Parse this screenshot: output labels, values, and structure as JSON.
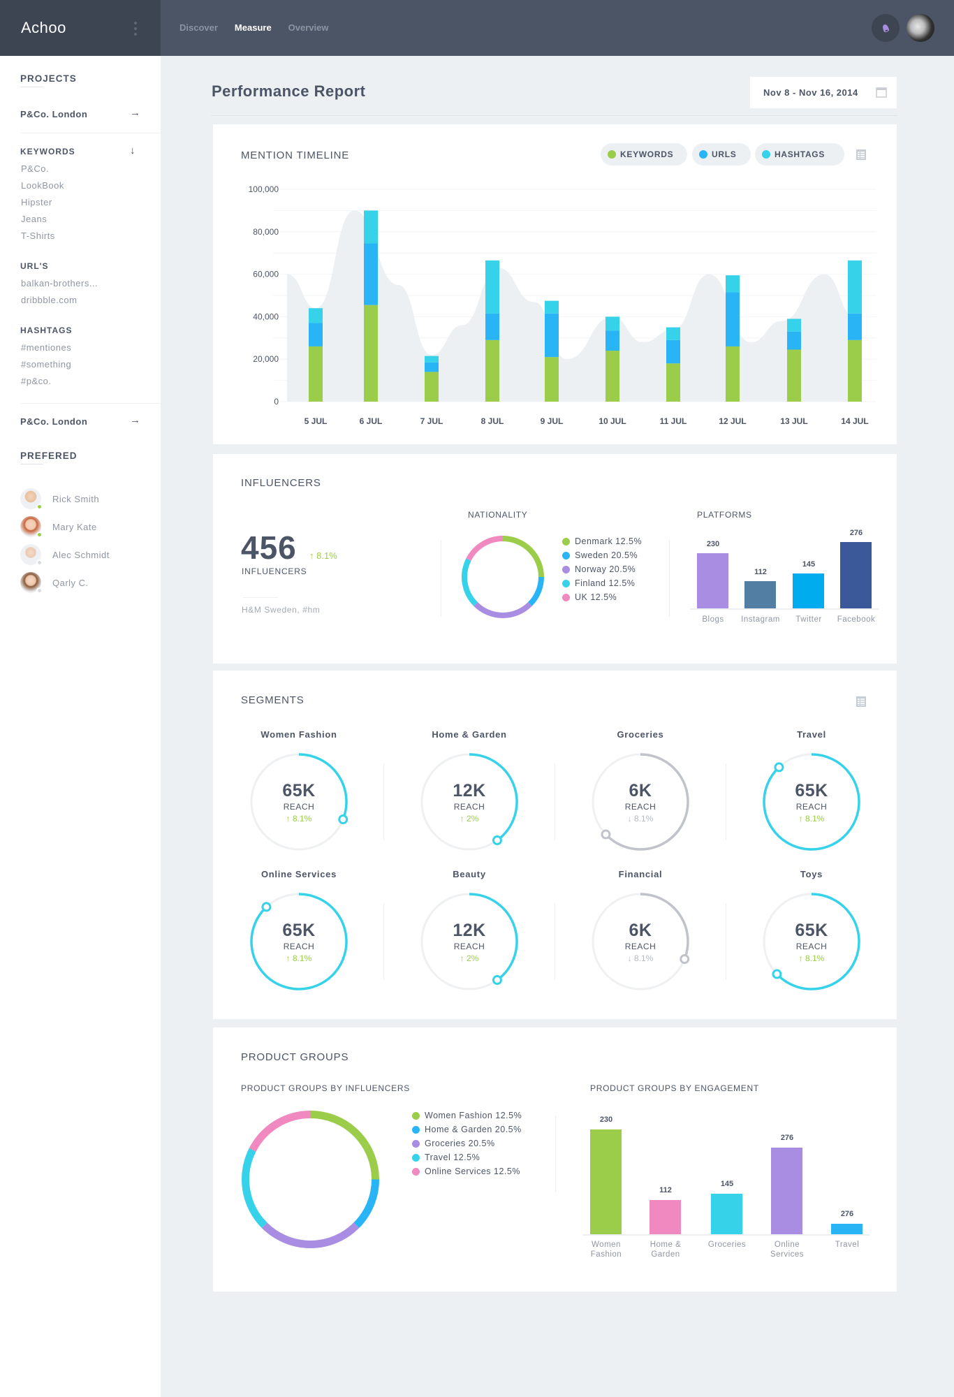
{
  "app": {
    "name": "Achoo",
    "nav": [
      {
        "label": "Discover",
        "active": false
      },
      {
        "label": "Measure",
        "active": true
      },
      {
        "label": "Overview",
        "active": false
      }
    ]
  },
  "sidebar": {
    "projects_heading": "PROJECTS",
    "project_top": "P&Co. London",
    "keywords_heading": "KEYWORDS",
    "keywords": [
      "P&Co.",
      "LookBook",
      "Hipster",
      "Jeans",
      "T-Shirts"
    ],
    "urls_heading": "URL'S",
    "urls": [
      "balkan-brothers...",
      "dribbble.com"
    ],
    "hashtags_heading": "HASHTAGS",
    "hashtags": [
      "#mentiones",
      "#something",
      "#p&co."
    ],
    "project_bottom": "P&Co. London",
    "prefered_heading": "PREFERED",
    "people": [
      {
        "name": "Rick Smith",
        "status": "online"
      },
      {
        "name": "Mary Kate",
        "status": "online"
      },
      {
        "name": "Alec Schmidt",
        "status": "offline"
      },
      {
        "name": "Qarly C.",
        "status": "offline"
      }
    ]
  },
  "header": {
    "title": "Performance Report",
    "date_range": "Nov 8 - Nov 16, 2014"
  },
  "colors": {
    "green": "#9bcd4b",
    "blue": "#29b5f5",
    "cyan": "#36d2ea",
    "purple": "#a88de2",
    "pink": "#ef89c0",
    "gray_ring": "#c0c3ca",
    "steel": "#517ea2",
    "twitter": "#00aced",
    "facebook": "#3b5998"
  },
  "mention_timeline": {
    "title": "MENTION TIMELINE",
    "filters": [
      {
        "label": "KEYWORDS",
        "color": "#9bcd4b"
      },
      {
        "label": "URLS",
        "color": "#29b5f5"
      },
      {
        "label": "HASHTAGS",
        "color": "#36d2ea"
      }
    ]
  },
  "influencers": {
    "title": "INFLUENCERS",
    "count": "456",
    "change": "8.1%",
    "count_label": "INFLUENCERS",
    "source": "H&M Sweden, #hm",
    "nationality_title": "NATIONALITY",
    "platforms_title": "PLATFORMS"
  },
  "segments": {
    "title": "SEGMENTS",
    "reach_label": "REACH",
    "items": [
      {
        "name": "Women Fashion",
        "value": "65K",
        "change": "8.1%",
        "trend": "up",
        "progress": 0.31
      },
      {
        "name": "Home & Garden",
        "value": "12K",
        "change": "2%",
        "trend": "up",
        "progress": 0.4
      },
      {
        "name": "Groceries",
        "value": "6K",
        "change": "8.1%",
        "trend": "down",
        "progress": 0.63
      },
      {
        "name": "Travel",
        "value": "65K",
        "change": "8.1%",
        "trend": "up",
        "progress": 0.88
      },
      {
        "name": "Online Services",
        "value": "65K",
        "change": "8.1%",
        "trend": "up",
        "progress": 0.88
      },
      {
        "name": "Beauty",
        "value": "12K",
        "change": "2%",
        "trend": "up",
        "progress": 0.4
      },
      {
        "name": "Financial",
        "value": "6K",
        "change": "8.1%",
        "trend": "down",
        "progress": 0.31
      },
      {
        "name": "Toys",
        "value": "65K",
        "change": "8.1%",
        "trend": "up",
        "progress": 0.63
      }
    ]
  },
  "product_groups": {
    "title": "PRODUCT GROUPS",
    "by_influencers_title": "PRODUCT GROUPS BY INFLUENCERS",
    "by_engagement_title": "PRODUCT GROUPS BY ENGAGEMENT"
  },
  "chart_data": [
    {
      "type": "bar",
      "stacked": true,
      "title": "MENTION TIMELINE",
      "categories": [
        "5 JUL",
        "6 JUL",
        "7 JUL",
        "8 JUL",
        "9 JUL",
        "10 JUL",
        "11 JUL",
        "12 JUL",
        "13 JUL",
        "14 JUL"
      ],
      "series": [
        {
          "name": "KEYWORDS",
          "color": "#9bcd4b",
          "values": [
            26000,
            45500,
            14000,
            29000,
            21000,
            24000,
            18000,
            26000,
            24500,
            29000
          ]
        },
        {
          "name": "URLS",
          "color": "#29b5f5",
          "values": [
            11000,
            29000,
            4500,
            12500,
            20500,
            9500,
            11000,
            25500,
            8500,
            12500
          ]
        },
        {
          "name": "HASHTAGS",
          "color": "#36d2ea",
          "values": [
            7000,
            15500,
            3000,
            25000,
            6000,
            6500,
            6000,
            8000,
            6000,
            25000
          ]
        }
      ],
      "background_area": {
        "name": "trend",
        "x": [
          4.5,
          5,
          5.5,
          6,
          6.5,
          7,
          7.5,
          8,
          8.5,
          9,
          9.5,
          10,
          10.5,
          11,
          11.5,
          12,
          12.5,
          13,
          13.5,
          14
        ],
        "values": [
          60000,
          44000,
          90000,
          55000,
          22000,
          36000,
          63000,
          47000,
          20000,
          40000,
          28000,
          34000,
          60000,
          28000,
          38000,
          60000,
          null,
          null,
          null,
          null
        ]
      },
      "yticks": [
        "0",
        "20,000",
        "40,000",
        "60,000",
        "80,000",
        "100,000"
      ],
      "ylim": [
        0,
        100000
      ],
      "grid": true,
      "legend": "top-right"
    },
    {
      "type": "pie",
      "donut": true,
      "title": "NATIONALITY",
      "labels": [
        "Denmark",
        "Sweden",
        "Norway",
        "Finland",
        "UK"
      ],
      "values": [
        12.5,
        20.5,
        20.5,
        12.5,
        12.5
      ],
      "colors": [
        "#9bcd4b",
        "#29b5f5",
        "#a88de2",
        "#36d2ea",
        "#ef89c0"
      ],
      "arc_fractions": [
        0.25,
        0.125,
        0.25,
        0.2,
        0.175
      ],
      "legend": "right"
    },
    {
      "type": "bar",
      "title": "PLATFORMS",
      "categories": [
        "Blogs",
        "Instagram",
        "Twitter",
        "Facebook"
      ],
      "values": [
        230,
        112,
        145,
        276
      ],
      "colors": [
        "#a88de2",
        "#517ea2",
        "#00aced",
        "#3b5998"
      ]
    },
    {
      "type": "pie",
      "donut": true,
      "title": "PRODUCT GROUPS BY INFLUENCERS",
      "labels": [
        "Women Fashion",
        "Home & Garden",
        "Groceries",
        "Travel",
        "Online Services"
      ],
      "values": [
        12.5,
        20.5,
        20.5,
        12.5,
        12.5
      ],
      "colors": [
        "#9bcd4b",
        "#29b5f5",
        "#a88de2",
        "#36d2ea",
        "#ef89c0"
      ],
      "arc_fractions": [
        0.25,
        0.125,
        0.25,
        0.2,
        0.175
      ],
      "legend": "right"
    },
    {
      "type": "bar",
      "title": "PRODUCT GROUPS BY ENGAGEMENT",
      "categories": [
        "Women Fashion",
        "Home & Garden",
        "Groceries",
        "Online Services",
        "Travel"
      ],
      "values": [
        230,
        112,
        145,
        276,
        276
      ],
      "bar_scale": [
        1.0,
        0.33,
        0.39,
        0.83,
        0.1
      ],
      "colors": [
        "#9bcd4b",
        "#ef89c0",
        "#36d2ea",
        "#a88de2",
        "#29b5f5"
      ]
    }
  ]
}
